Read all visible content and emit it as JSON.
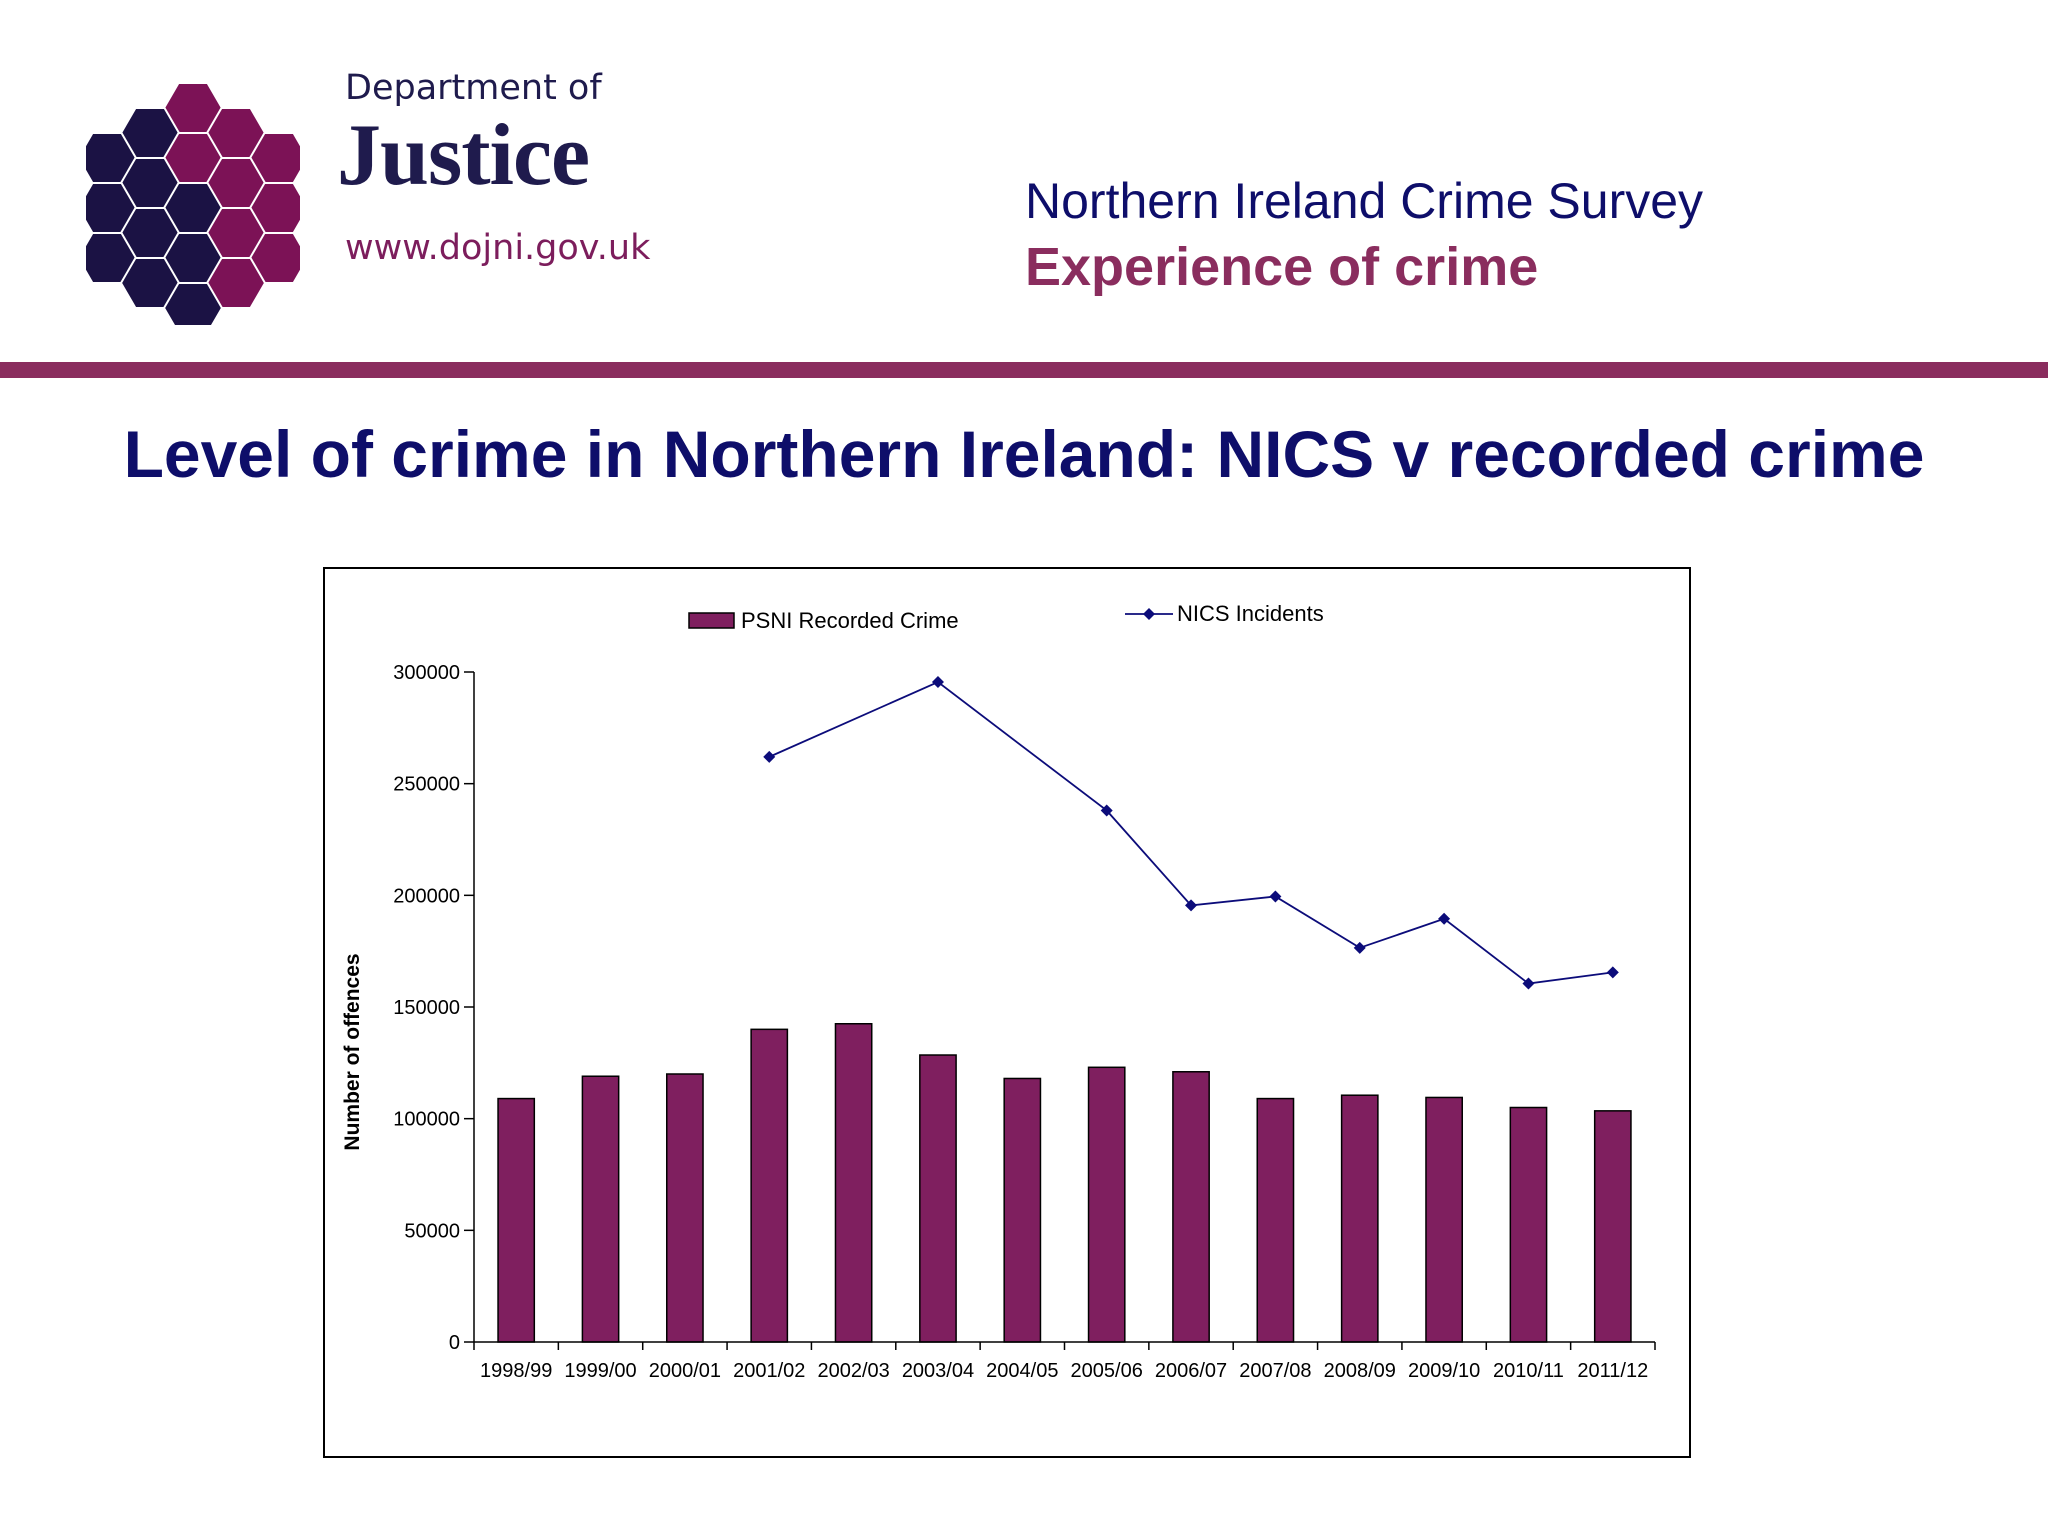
{
  "header": {
    "logo_text_1": "Department of",
    "logo_text_2": "Justice",
    "logo_url": "www.dojni.gov.uk",
    "survey_title": "Northern Ireland Crime Survey",
    "survey_subtitle": "Experience of crime"
  },
  "slide_title": "Level of crime in Northern Ireland: NICS v recorded crime",
  "colors": {
    "navy": "#0e0e6a",
    "plum": "#8a2d5e",
    "bar": "#7f1f5f",
    "line": "#0c0c7a",
    "logo_dark": "#1b1244",
    "logo_plum": "#7c1256"
  },
  "chart_data": {
    "type": "bar",
    "categories": [
      "1998/99",
      "1999/00",
      "2000/01",
      "2001/02",
      "2002/03",
      "2003/04",
      "2004/05",
      "2005/06",
      "2006/07",
      "2007/08",
      "2008/09",
      "2009/10",
      "2010/11",
      "2011/12"
    ],
    "series": [
      {
        "name": "PSNI Recorded Crime",
        "type": "bar",
        "values": [
          109000,
          119000,
          120000,
          140000,
          142500,
          128500,
          118000,
          123000,
          121000,
          109000,
          110500,
          109500,
          105000,
          103500
        ]
      },
      {
        "name": "NICS Incidents",
        "type": "line",
        "marker": "diamond",
        "values": [
          null,
          null,
          null,
          262000,
          null,
          295500,
          null,
          238000,
          195500,
          199500,
          176500,
          189500,
          160500,
          165500
        ]
      }
    ],
    "ylabel": "Number of offences",
    "xlabel": "",
    "ylim": [
      0,
      300000
    ],
    "yticks": [
      0,
      50000,
      100000,
      150000,
      200000,
      250000,
      300000
    ],
    "grid": false,
    "legend_position": "top"
  }
}
